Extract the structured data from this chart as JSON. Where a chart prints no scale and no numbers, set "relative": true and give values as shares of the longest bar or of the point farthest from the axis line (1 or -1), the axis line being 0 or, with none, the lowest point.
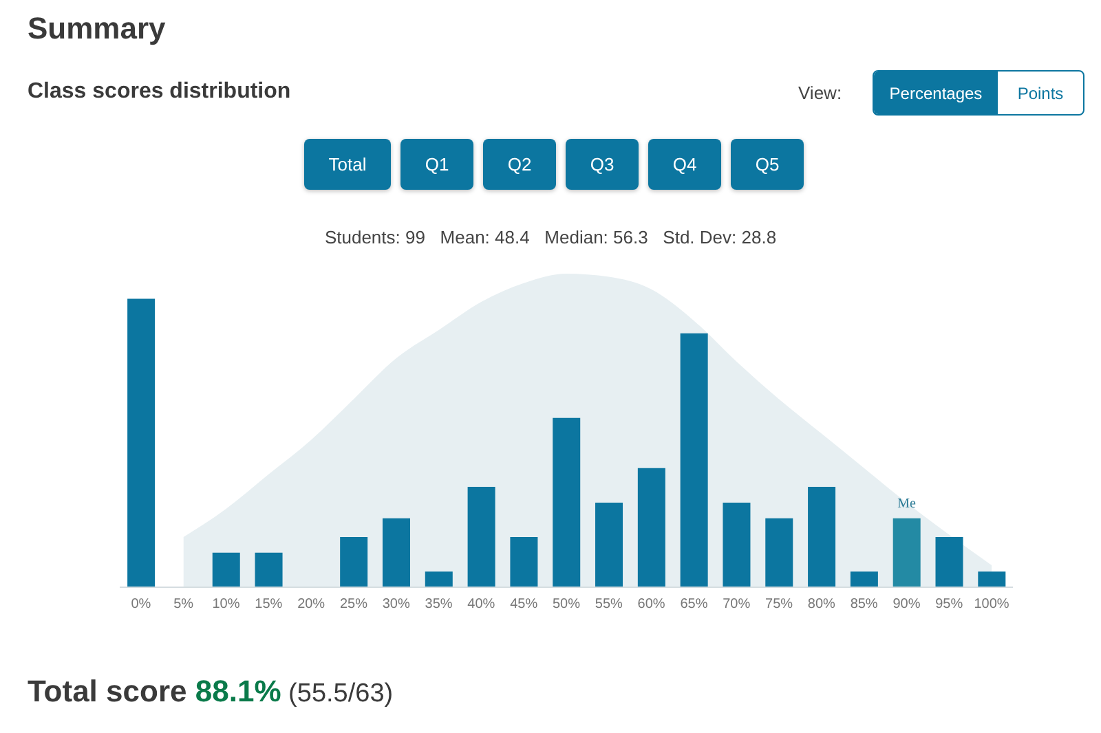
{
  "chart_data": {
    "type": "bar",
    "title": "Summary",
    "subtitle": "Class scores distribution",
    "relative": true,
    "categories": [
      "0%",
      "5%",
      "10%",
      "15%",
      "20%",
      "25%",
      "30%",
      "35%",
      "40%",
      "45%",
      "50%",
      "55%",
      "60%",
      "65%",
      "70%",
      "75%",
      "80%",
      "85%",
      "90%",
      "95%",
      "100%"
    ],
    "series": [
      {
        "type": "area",
        "color": "#e7eff2",
        "values": [
          null,
          0.16,
          0.25,
          0.36,
          0.47,
          0.6,
          0.73,
          0.82,
          0.91,
          0.97,
          1.0,
          0.99,
          0.95,
          0.85,
          0.72,
          0.6,
          0.49,
          0.38,
          0.27,
          null,
          0.07
        ]
      },
      {
        "color": "#0c76a0",
        "colors": [
          "#0c76a0",
          "#0c76a0",
          "#0c76a0",
          "#0c76a0",
          "#0c76a0",
          "#0c76a0",
          "#0c76a0",
          "#0c76a0",
          "#0c76a0",
          "#0c76a0",
          "#0c76a0",
          "#0c76a0",
          "#0c76a0",
          "#0c76a0",
          "#0c76a0",
          "#0c76a0",
          "#0c76a0",
          "#0c76a0",
          "#238aa4",
          "#0c76a0",
          "#0c76a0"
        ],
        "values": [
          0.92,
          0,
          0.11,
          0.11,
          0,
          0.16,
          0.22,
          0.05,
          0.32,
          0.16,
          0.54,
          0.27,
          0.38,
          0.81,
          0.27,
          0.22,
          0.32,
          0.05,
          0.22,
          0.16,
          0.05
        ]
      }
    ],
    "annotations": [
      "Students: 99   Mean: 48.4   Median: 56.3   Std. Dev: 28.8",
      "View:",
      "Percentages",
      "Points",
      "Total",
      "Q1",
      "Q2",
      "Q3",
      "Q4",
      "Q5",
      "Total score",
      "88.1%",
      "(55.5/63)",
      {
        "text": "Me",
        "x": "90%",
        "y": 0.22
      }
    ],
    "legend": false,
    "grid": false
  }
}
